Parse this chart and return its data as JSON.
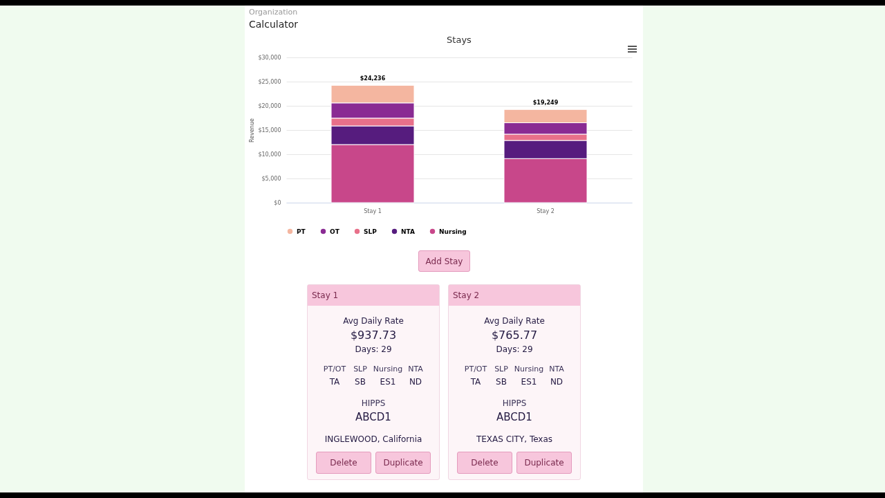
{
  "chart_data": [
    {
      "type": "other",
      "annotations": [
        "Organization",
        "Calculator"
      ]
    },
    {
      "type": "bar",
      "title": "Stays",
      "ylabel": "Revenue",
      "categories": [
        "Stay 1",
        "Stay 2"
      ],
      "stacked": true,
      "ylim": [
        0,
        30000
      ],
      "yticks": [
        {
          "value": 0,
          "label": "$0"
        },
        {
          "value": 5000,
          "label": "$5,000"
        },
        {
          "value": 10000,
          "label": "$10,000"
        },
        {
          "value": 15000,
          "label": "$15,000"
        },
        {
          "value": 20000,
          "label": "$20,000"
        },
        {
          "value": 25000,
          "label": "$25,000"
        },
        {
          "value": 30000,
          "label": "$30,000"
        }
      ],
      "grid": "y",
      "legend": "bottom",
      "marker": "circle",
      "totals": [
        "$24,236",
        "$19,249"
      ],
      "series": [
        {
          "name": "Nursing",
          "color": "#c8478a",
          "values": [
            12000,
            9100
          ]
        },
        {
          "name": "NTA",
          "color": "#561c7e",
          "values": [
            3850,
            3750
          ]
        },
        {
          "name": "SLP",
          "color": "#e8708a",
          "values": [
            1600,
            1300
          ]
        },
        {
          "name": "OT",
          "color": "#8a2b93",
          "values": [
            3150,
            2350
          ]
        },
        {
          "name": "PT",
          "color": "#f4b6a0",
          "values": [
            3636,
            2749
          ]
        }
      ]
    },
    {
      "type": "other",
      "annotations": [
        "Add Stay"
      ]
    },
    {
      "type": "other",
      "title": "Stay 1",
      "annotations": [
        "Avg Daily Rate",
        "$937.73",
        "Days: 29",
        "PT/OT",
        "SLP",
        "Nursing",
        "NTA",
        "TA",
        "SB",
        "ES1",
        "ND",
        "HIPPS",
        "ABCD1",
        "INGLEWOOD, California",
        "Delete",
        "Duplicate"
      ]
    },
    {
      "type": "other",
      "title": "Stay 2",
      "annotations": [
        "Avg Daily Rate",
        "$765.77",
        "Days: 29",
        "PT/OT",
        "SLP",
        "Nursing",
        "NTA",
        "TA",
        "SB",
        "ES1",
        "ND",
        "HIPPS",
        "ABCD1",
        "TEXAS CITY, Texas",
        "Delete",
        "Duplicate"
      ]
    }
  ]
}
